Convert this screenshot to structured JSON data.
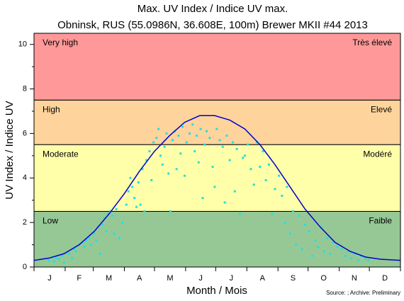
{
  "chart_data": {
    "type": "scatter",
    "title": "Max. UV Index / Indice UV max.",
    "subtitle": "Obninsk, RUS (55.0986N, 36.608E, 100m) Brewer MKII #44 2013",
    "y_label": "UV Index / Indice UV",
    "x_label": "Month / Mois",
    "source": "Source: ; Archive: Preliminary",
    "xlim": [
      0,
      365
    ],
    "ylim": [
      0,
      10.5
    ],
    "yticks": [
      0,
      2,
      4,
      6,
      8,
      10
    ],
    "y_minor_ticks": [
      1,
      3,
      5,
      7,
      9
    ],
    "xticks": [
      {
        "value": 15.5,
        "label": "J"
      },
      {
        "value": 45,
        "label": "F"
      },
      {
        "value": 74.5,
        "label": "M"
      },
      {
        "value": 105,
        "label": "A"
      },
      {
        "value": 135.5,
        "label": "M"
      },
      {
        "value": 166,
        "label": "J"
      },
      {
        "value": 196.5,
        "label": "J"
      },
      {
        "value": 227.5,
        "label": "A"
      },
      {
        "value": 258,
        "label": "S"
      },
      {
        "value": 288.5,
        "label": "O"
      },
      {
        "value": 319,
        "label": "N"
      },
      {
        "value": 349.5,
        "label": "D"
      }
    ],
    "x_minor_ticks": [
      0,
      31,
      59,
      90,
      120,
      151,
      181,
      212,
      243,
      273,
      304,
      334,
      365
    ],
    "zones": [
      {
        "label": "Low",
        "label_fr": "Faible",
        "from": 0,
        "to": 2.5,
        "color": "#96c896"
      },
      {
        "label": "Moderate",
        "label_fr": "Modéré",
        "from": 2.5,
        "to": 5.5,
        "color": "#ffffaa"
      },
      {
        "label": "High",
        "label_fr": "Elevé",
        "from": 5.5,
        "to": 7.5,
        "color": "#ffd49c"
      },
      {
        "label": "Very high",
        "label_fr": "Très élevé",
        "from": 7.5,
        "to": 10.5,
        "color": "#ff9999"
      }
    ],
    "curve": {
      "color": "#0000cc",
      "x": [
        0,
        15,
        30,
        45,
        60,
        75,
        90,
        105,
        120,
        135,
        150,
        165,
        180,
        195,
        210,
        225,
        240,
        255,
        270,
        285,
        300,
        315,
        330,
        345,
        365
      ],
      "values": [
        0.3,
        0.4,
        0.6,
        1.0,
        1.6,
        2.4,
        3.3,
        4.3,
        5.2,
        5.9,
        6.5,
        6.8,
        6.8,
        6.6,
        6.2,
        5.5,
        4.6,
        3.6,
        2.6,
        1.8,
        1.1,
        0.7,
        0.45,
        0.35,
        0.3
      ]
    },
    "points": {
      "color": "#22e0e0",
      "x": [
        15,
        20,
        22,
        25,
        28,
        30,
        18,
        35,
        38,
        40,
        42,
        45,
        48,
        50,
        52,
        55,
        57,
        60,
        62,
        64,
        66,
        68,
        70,
        72,
        74,
        76,
        78,
        80,
        82,
        85,
        88,
        92,
        94,
        96,
        98,
        100,
        102,
        104,
        106,
        108,
        110,
        112,
        115,
        117,
        119,
        122,
        124,
        126,
        128,
        130,
        132,
        134,
        136,
        138,
        140,
        142,
        144,
        146,
        148,
        150,
        152,
        155,
        158,
        160,
        162,
        164,
        166,
        168,
        170,
        172,
        175,
        178,
        180,
        182,
        185,
        188,
        190,
        192,
        195,
        198,
        200,
        202,
        205,
        208,
        210,
        213,
        216,
        219,
        222,
        225,
        228,
        231,
        234,
        237,
        240,
        244,
        247,
        250,
        252,
        255,
        258,
        261,
        264,
        267,
        270,
        274,
        277,
        280,
        283,
        286,
        289,
        292,
        295,
        298,
        302,
        306,
        310,
        313,
        316,
        320,
        323,
        326,
        330,
        333
      ],
      "values": [
        0.3,
        0.25,
        0.4,
        0.35,
        0.5,
        0.2,
        0.45,
        0.6,
        0.4,
        0.8,
        0.7,
        1.0,
        1.1,
        0.9,
        1.2,
        1.3,
        1.0,
        1.5,
        1.2,
        1.8,
        0.6,
        1.9,
        2.2,
        1.6,
        2.4,
        2.5,
        2.3,
        1.5,
        2.6,
        1.3,
        2.0,
        2.8,
        3.4,
        4.0,
        3.6,
        3.1,
        2.7,
        3.8,
        2.8,
        4.4,
        2.5,
        4.8,
        5.2,
        3.9,
        5.6,
        5.8,
        6.2,
        5.0,
        4.6,
        5.4,
        6.0,
        4.2,
        2.5,
        5.7,
        6.1,
        4.4,
        5.9,
        5.1,
        6.3,
        4.1,
        5.6,
        6.0,
        6.4,
        5.2,
        5.9,
        4.7,
        6.2,
        3.1,
        5.5,
        6.1,
        5.8,
        4.5,
        3.6,
        6.2,
        5.7,
        5.4,
        2.9,
        5.9,
        4.8,
        5.6,
        3.4,
        5.3,
        2.4,
        4.9,
        5.0,
        5.5,
        4.4,
        3.7,
        5.6,
        4.5,
        5.2,
        3.9,
        4.6,
        2.4,
        3.5,
        4.1,
        3.2,
        2.0,
        3.6,
        1.5,
        2.5,
        1.0,
        2.3,
        0.8,
        1.9,
        1.6,
        0.5,
        1.2,
        0.9,
        1.8,
        0.7,
        1.3,
        0.6,
        1.1,
        0.9,
        0.8,
        0.5,
        0.7,
        0.4,
        0.6,
        0.3,
        0.5,
        0.35,
        0.3
      ]
    }
  }
}
